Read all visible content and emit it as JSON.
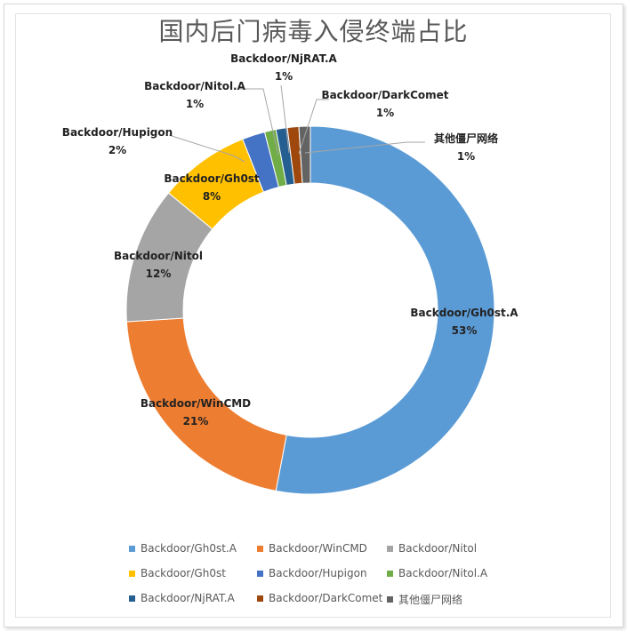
{
  "title": "国内后门病毒入侵终端占比",
  "chart_data": {
    "type": "donut",
    "title": "国内后门病毒入侵终端占比",
    "slices": [
      {
        "name": "Backdoor/Gh0st.A",
        "value": 53,
        "label": "53%",
        "color": "#5b9bd5"
      },
      {
        "name": "Backdoor/WinCMD",
        "value": 21,
        "label": "21%",
        "color": "#ed7d31"
      },
      {
        "name": "Backdoor/Nitol",
        "value": 12,
        "label": "12%",
        "color": "#a5a5a5"
      },
      {
        "name": "Backdoor/Gh0st",
        "value": 8,
        "label": "8%",
        "color": "#ffc000"
      },
      {
        "name": "Backdoor/Hupigon",
        "value": 2,
        "label": "2%",
        "color": "#4472c4"
      },
      {
        "name": "Backdoor/Nitol.A",
        "value": 1,
        "label": "1%",
        "color": "#70ad47"
      },
      {
        "name": "Backdoor/NjRAT.A",
        "value": 1,
        "label": "1%",
        "color": "#255e91"
      },
      {
        "name": "Backdoor/DarkComet",
        "value": 1,
        "label": "1%",
        "color": "#9e480e"
      },
      {
        "name": "其他僵尸网络",
        "value": 1,
        "label": "1%",
        "color": "#636363"
      }
    ],
    "legend_position": "bottom"
  }
}
